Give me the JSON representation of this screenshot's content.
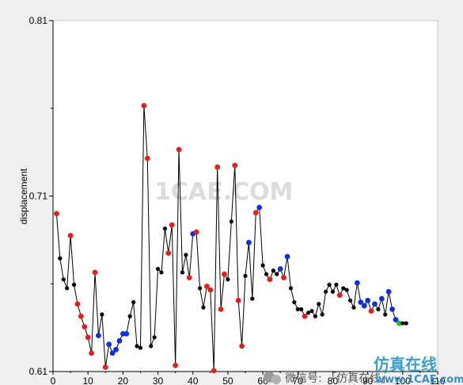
{
  "chart_data": {
    "type": "scatter",
    "title": "",
    "xlabel": "",
    "ylabel": "displacement",
    "xlim": [
      0,
      110
    ],
    "ylim": [
      0.61,
      0.81
    ],
    "x_ticks": [
      0,
      10,
      20,
      30,
      40,
      50,
      60,
      70,
      80,
      90,
      100,
      110
    ],
    "y_ticks": [
      0.61,
      0.71,
      0.81
    ],
    "y_tick_labels": [
      "0.61",
      "0.71",
      "0.81"
    ],
    "x_tick_labels": [
      "0",
      "10",
      "20",
      "30",
      "40",
      "50",
      "60",
      "70",
      "80",
      "90",
      "100",
      "110"
    ],
    "grid": false,
    "legend": "none",
    "line_color": "#000000",
    "marker_colors": {
      "black": "#000000",
      "red": "#e02020",
      "blue": "#1030e0",
      "green": "#20c020"
    },
    "points": [
      {
        "x": 1,
        "y": 0.7,
        "c": "red"
      },
      {
        "x": 2,
        "y": 0.6745,
        "c": "black"
      },
      {
        "x": 3,
        "y": 0.6625,
        "c": "black"
      },
      {
        "x": 4,
        "y": 0.6575,
        "c": "black"
      },
      {
        "x": 5,
        "y": 0.6875,
        "c": "red"
      },
      {
        "x": 6,
        "y": 0.6595,
        "c": "black"
      },
      {
        "x": 7,
        "y": 0.6485,
        "c": "red"
      },
      {
        "x": 8,
        "y": 0.6415,
        "c": "red"
      },
      {
        "x": 9,
        "y": 0.6355,
        "c": "red"
      },
      {
        "x": 10,
        "y": 0.6295,
        "c": "red"
      },
      {
        "x": 11,
        "y": 0.6205,
        "c": "red"
      },
      {
        "x": 12,
        "y": 0.6665,
        "c": "red"
      },
      {
        "x": 13,
        "y": 0.6305,
        "c": "blue"
      },
      {
        "x": 14,
        "y": 0.6425,
        "c": "black"
      },
      {
        "x": 15,
        "y": 0.6125,
        "c": "red"
      },
      {
        "x": 16,
        "y": 0.6255,
        "c": "blue"
      },
      {
        "x": 17,
        "y": 0.6205,
        "c": "blue"
      },
      {
        "x": 18,
        "y": 0.6225,
        "c": "blue"
      },
      {
        "x": 19,
        "y": 0.6275,
        "c": "blue"
      },
      {
        "x": 20,
        "y": 0.6315,
        "c": "blue"
      },
      {
        "x": 21,
        "y": 0.6315,
        "c": "blue"
      },
      {
        "x": 22,
        "y": 0.6415,
        "c": "black"
      },
      {
        "x": 23,
        "y": 0.6495,
        "c": "black"
      },
      {
        "x": 24,
        "y": 0.6245,
        "c": "black"
      },
      {
        "x": 25,
        "y": 0.6235,
        "c": "black"
      },
      {
        "x": 26,
        "y": 0.7615,
        "c": "red"
      },
      {
        "x": 27,
        "y": 0.7315,
        "c": "red"
      },
      {
        "x": 28,
        "y": 0.6245,
        "c": "black"
      },
      {
        "x": 29,
        "y": 0.6295,
        "c": "black"
      },
      {
        "x": 30,
        "y": 0.6685,
        "c": "black"
      },
      {
        "x": 31,
        "y": 0.6665,
        "c": "black"
      },
      {
        "x": 32,
        "y": 0.6915,
        "c": "black"
      },
      {
        "x": 33,
        "y": 0.6775,
        "c": "red"
      },
      {
        "x": 34,
        "y": 0.6935,
        "c": "red"
      },
      {
        "x": 35,
        "y": 0.6135,
        "c": "red"
      },
      {
        "x": 36,
        "y": 0.7365,
        "c": "red"
      },
      {
        "x": 37,
        "y": 0.6665,
        "c": "black"
      },
      {
        "x": 38,
        "y": 0.6765,
        "c": "black"
      },
      {
        "x": 39,
        "y": 0.6635,
        "c": "red"
      },
      {
        "x": 40,
        "y": 0.6885,
        "c": "blue"
      },
      {
        "x": 41,
        "y": 0.6895,
        "c": "red"
      },
      {
        "x": 42,
        "y": 0.6575,
        "c": "black"
      },
      {
        "x": 43,
        "y": 0.6465,
        "c": "black"
      },
      {
        "x": 44,
        "y": 0.6585,
        "c": "red"
      },
      {
        "x": 45,
        "y": 0.6565,
        "c": "red"
      },
      {
        "x": 46,
        "y": 0.6105,
        "c": "red"
      },
      {
        "x": 47,
        "y": 0.7265,
        "c": "red"
      },
      {
        "x": 48,
        "y": 0.6455,
        "c": "red"
      },
      {
        "x": 49,
        "y": 0.6655,
        "c": "red"
      },
      {
        "x": 50,
        "y": 0.6625,
        "c": "black"
      },
      {
        "x": 51,
        "y": 0.6955,
        "c": "black"
      },
      {
        "x": 52,
        "y": 0.7275,
        "c": "red"
      },
      {
        "x": 53,
        "y": 0.6505,
        "c": "red"
      },
      {
        "x": 54,
        "y": 0.6245,
        "c": "red"
      },
      {
        "x": 55,
        "y": 0.6645,
        "c": "black"
      },
      {
        "x": 56,
        "y": 0.6835,
        "c": "blue"
      },
      {
        "x": 57,
        "y": 0.6515,
        "c": "black"
      },
      {
        "x": 58,
        "y": 0.7005,
        "c": "red"
      },
      {
        "x": 59,
        "y": 0.7035,
        "c": "blue"
      },
      {
        "x": 60,
        "y": 0.6705,
        "c": "black"
      },
      {
        "x": 61,
        "y": 0.6655,
        "c": "black"
      },
      {
        "x": 62,
        "y": 0.6625,
        "c": "red"
      },
      {
        "x": 63,
        "y": 0.6675,
        "c": "black"
      },
      {
        "x": 64,
        "y": 0.6655,
        "c": "black"
      },
      {
        "x": 65,
        "y": 0.6685,
        "c": "blue"
      },
      {
        "x": 66,
        "y": 0.6635,
        "c": "red"
      },
      {
        "x": 67,
        "y": 0.6755,
        "c": "blue"
      },
      {
        "x": 68,
        "y": 0.6575,
        "c": "black"
      },
      {
        "x": 69,
        "y": 0.6495,
        "c": "black"
      },
      {
        "x": 70,
        "y": 0.6455,
        "c": "black"
      },
      {
        "x": 71,
        "y": 0.6455,
        "c": "black"
      },
      {
        "x": 72,
        "y": 0.6415,
        "c": "red"
      },
      {
        "x": 73,
        "y": 0.6435,
        "c": "black"
      },
      {
        "x": 74,
        "y": 0.6445,
        "c": "black"
      },
      {
        "x": 75,
        "y": 0.6415,
        "c": "black"
      },
      {
        "x": 76,
        "y": 0.6485,
        "c": "black"
      },
      {
        "x": 77,
        "y": 0.6425,
        "c": "black"
      },
      {
        "x": 78,
        "y": 0.6555,
        "c": "black"
      },
      {
        "x": 79,
        "y": 0.6595,
        "c": "black"
      },
      {
        "x": 80,
        "y": 0.6555,
        "c": "black"
      },
      {
        "x": 81,
        "y": 0.6595,
        "c": "black"
      },
      {
        "x": 82,
        "y": 0.6535,
        "c": "red"
      },
      {
        "x": 83,
        "y": 0.6575,
        "c": "black"
      },
      {
        "x": 84,
        "y": 0.6565,
        "c": "black"
      },
      {
        "x": 85,
        "y": 0.6505,
        "c": "black"
      },
      {
        "x": 86,
        "y": 0.6465,
        "c": "black"
      },
      {
        "x": 87,
        "y": 0.6605,
        "c": "blue"
      },
      {
        "x": 88,
        "y": 0.6495,
        "c": "blue"
      },
      {
        "x": 89,
        "y": 0.6475,
        "c": "blue"
      },
      {
        "x": 90,
        "y": 0.6505,
        "c": "blue"
      },
      {
        "x": 91,
        "y": 0.6445,
        "c": "red"
      },
      {
        "x": 92,
        "y": 0.6485,
        "c": "blue"
      },
      {
        "x": 93,
        "y": 0.6455,
        "c": "black"
      },
      {
        "x": 94,
        "y": 0.6515,
        "c": "blue"
      },
      {
        "x": 95,
        "y": 0.6425,
        "c": "black"
      },
      {
        "x": 96,
        "y": 0.6555,
        "c": "blue"
      },
      {
        "x": 97,
        "y": 0.6455,
        "c": "blue"
      },
      {
        "x": 98,
        "y": 0.6395,
        "c": "blue"
      },
      {
        "x": 99,
        "y": 0.6375,
        "c": "green"
      },
      {
        "x": 100,
        "y": 0.6375,
        "c": "black"
      },
      {
        "x": 101,
        "y": 0.6375,
        "c": "black"
      }
    ]
  },
  "watermark": {
    "center_text": "1CAE.COM",
    "wechat_text": "微信号: 「仿真在线」",
    "cn_text": "仿真在线",
    "url_text": "www.1CAE.com"
  }
}
